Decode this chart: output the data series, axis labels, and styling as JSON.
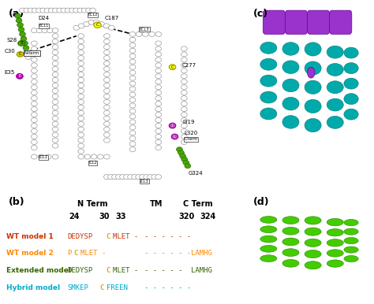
{
  "panel_a_label": "(a)",
  "panel_b_label": "(b)",
  "panel_c_label": "(c)",
  "panel_d_label": "(d)",
  "table_header_row1": [
    "",
    "N Term",
    "",
    "TM",
    "C Term"
  ],
  "table_header_row2": [
    "",
    "24",
    "30  33",
    "",
    "320    324"
  ],
  "model_labels": [
    "WT model 1",
    "WT model 2",
    "Extended model",
    "Hybrid model"
  ],
  "model_label_colors": [
    "#cc3300",
    "#ff8800",
    "#336600",
    "#00aacc"
  ],
  "wt1_nterm": "DEDYSPC",
  "wt1_nterm_c": "C",
  "wt1_nterm_rest": "MLET -",
  "wt1_tm": "- - - - - -",
  "wt1_cterm": "",
  "wt2_nterm": "PC",
  "wt2_nterm_c": "C",
  "wt2_nterm_rest": "MLET -",
  "wt2_tm": "- - - - - -",
  "wt2_cterm": "LAMHG",
  "ext_nterm": "DEDYSPC",
  "ext_nterm_c": "C",
  "ext_nterm_rest": "MLET -",
  "ext_tm": "- - - - -",
  "ext_cterm": "LAMHG",
  "hyb_nterm": "SMKEPC",
  "hyb_nterm_c": "C",
  "hyb_nterm_rest": "FREEN",
  "hyb_tm": "- - - - - -",
  "hyb_cterm": "",
  "bg_color": "#ffffff",
  "snake_circle_color": "#ffffff",
  "snake_circle_edge": "#888888",
  "n_term_color": "#000000",
  "annotation_color": "#000000"
}
